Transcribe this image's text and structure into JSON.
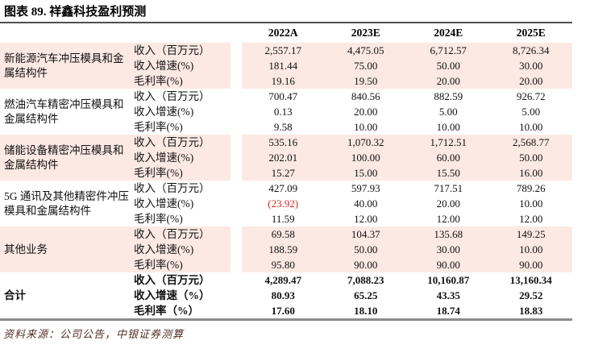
{
  "title": "图表 89. 祥鑫科技盈利预测",
  "footer": "资料来源：公司公告，中银证券测算",
  "colors": {
    "band": "#fce9e3",
    "negative": "#e1251f",
    "rule_top": "#4f4f4f",
    "rule_bottom": "#8c8c8c",
    "source_text": "#533027"
  },
  "table": {
    "columns": [
      "2022A",
      "2023E",
      "2024E",
      "2025E"
    ],
    "groups": [
      {
        "label": "新能源汽车冲压模具和金属结构件",
        "shaded": true,
        "bold": false,
        "rows": [
          {
            "metric": "收入（百万元）",
            "values": [
              "2,557.17",
              "4,475.05",
              "6,712.57",
              "8,726.34"
            ]
          },
          {
            "metric": "收入增速(%)",
            "values": [
              "181.44",
              "75.00",
              "50.00",
              "30.00"
            ]
          },
          {
            "metric": "毛利率(%)",
            "values": [
              "19.16",
              "19.50",
              "20.00",
              "20.00"
            ]
          }
        ]
      },
      {
        "label": "燃油汽车精密冲压模具和金属结构件",
        "shaded": false,
        "bold": false,
        "rows": [
          {
            "metric": "收入（百万元）",
            "values": [
              "700.47",
              "840.56",
              "882.59",
              "926.72"
            ]
          },
          {
            "metric": "收入增速(%)",
            "values": [
              "0.13",
              "20.00",
              "5.00",
              "5.00"
            ]
          },
          {
            "metric": "毛利率(%)",
            "values": [
              "9.58",
              "10.00",
              "10.00",
              "10.00"
            ]
          }
        ]
      },
      {
        "label": "储能设备精密冲压模具和金属结构件",
        "shaded": true,
        "bold": false,
        "rows": [
          {
            "metric": "收入（百万元）",
            "values": [
              "535.16",
              "1,070.32",
              "1,712.51",
              "2,568.77"
            ]
          },
          {
            "metric": "收入增速(%)",
            "values": [
              "202.01",
              "100.00",
              "60.00",
              "50.00"
            ]
          },
          {
            "metric": "毛利率(%)",
            "values": [
              "15.27",
              "15.00",
              "15.50",
              "16.00"
            ]
          }
        ]
      },
      {
        "label": "5G 通讯及其他精密件冲压模具和金属结构件",
        "shaded": false,
        "bold": false,
        "rows": [
          {
            "metric": "收入（百万元）",
            "values": [
              "427.09",
              "597.93",
              "717.51",
              "789.26"
            ]
          },
          {
            "metric": "收入增速(%)",
            "values": [
              "(23.92)",
              "40.00",
              "20.00",
              "10.00"
            ]
          },
          {
            "metric": "毛利率(%)",
            "values": [
              "11.59",
              "12.00",
              "12.00",
              "12.00"
            ]
          }
        ]
      },
      {
        "label": "其他业务",
        "shaded": true,
        "bold": false,
        "rows": [
          {
            "metric": "收入（百万元）",
            "values": [
              "69.58",
              "104.37",
              "135.68",
              "149.25"
            ]
          },
          {
            "metric": "收入增速(%)",
            "values": [
              "188.59",
              "50.00",
              "30.00",
              "10.00"
            ]
          },
          {
            "metric": "毛利率(%)",
            "values": [
              "95.80",
              "90.00",
              "90.00",
              "90.00"
            ]
          }
        ]
      },
      {
        "label": "合计",
        "shaded": false,
        "bold": true,
        "rows": [
          {
            "metric": "收入（百万元）",
            "values": [
              "4,289.47",
              "7,088.23",
              "10,160.87",
              "13,160.34"
            ]
          },
          {
            "metric": "收入增速（%）",
            "values": [
              "80.93",
              "65.25",
              "43.35",
              "29.52"
            ]
          },
          {
            "metric": "毛利率（%）",
            "values": [
              "17.60",
              "18.10",
              "18.74",
              "18.83"
            ]
          }
        ]
      }
    ]
  }
}
